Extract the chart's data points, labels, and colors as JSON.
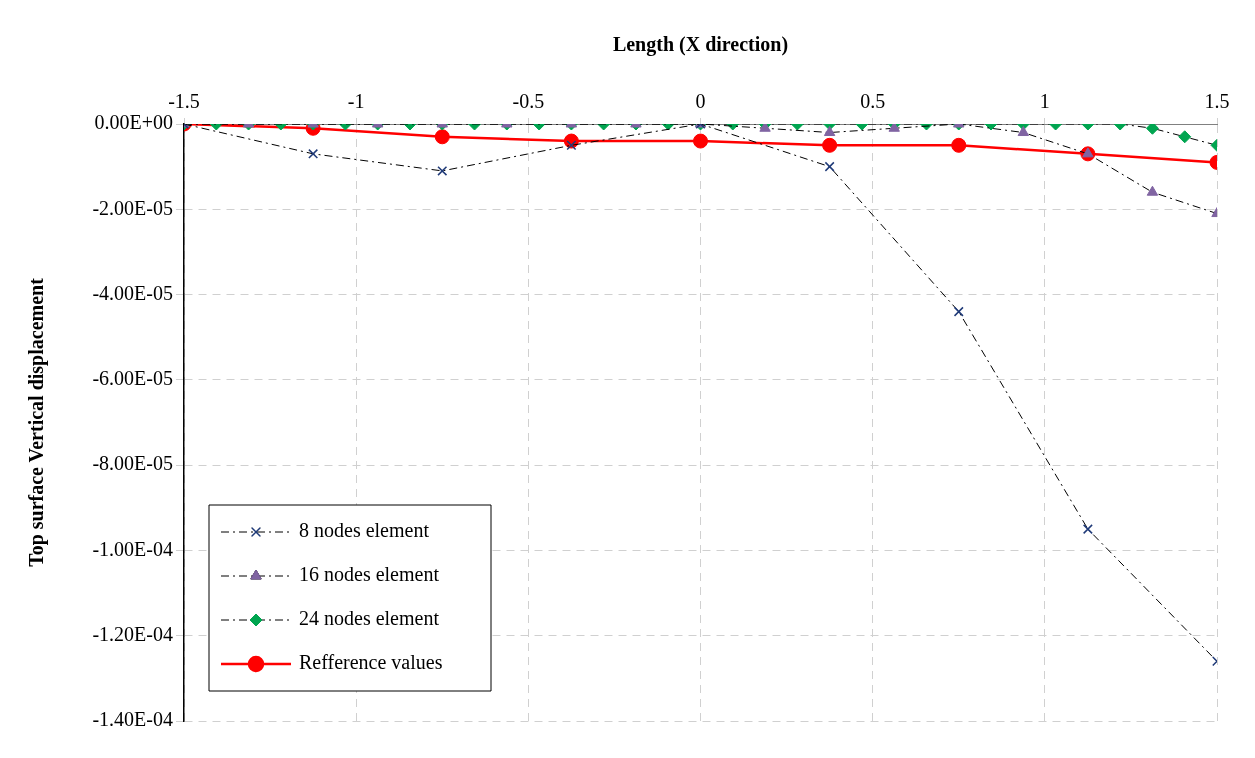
{
  "chart_data": {
    "type": "line",
    "xlabel": "Length (X direction)",
    "ylabel": "Top surface Vertical displacement",
    "xlim": [
      -1.5,
      1.5
    ],
    "xticks": [
      -1.5,
      -1,
      -0.5,
      0,
      0.5,
      1,
      1.5
    ],
    "ylim": [
      -0.00014,
      0
    ],
    "yticks": [
      {
        "value": 0,
        "label": "0.00E+00"
      },
      {
        "value": -2e-05,
        "label": "-2.00E-05"
      },
      {
        "value": -4e-05,
        "label": "-4.00E-05"
      },
      {
        "value": -6e-05,
        "label": "-6.00E-05"
      },
      {
        "value": -8e-05,
        "label": "-8.00E-05"
      },
      {
        "value": -0.0001,
        "label": "-1.00E-04"
      },
      {
        "value": -0.00012,
        "label": "-1.20E-04"
      },
      {
        "value": -0.00014,
        "label": "-1.40E-04"
      }
    ],
    "grid": true,
    "legend": "bottom left",
    "series": [
      {
        "name": "8 nodes element",
        "color": "#1f3a78",
        "marker": "cross",
        "line_style": "dashed",
        "x": [
          -1.5,
          -1.125,
          -0.75,
          -0.375,
          0,
          0.375,
          0.75,
          1.125,
          1.5
        ],
        "values": [
          0,
          -7e-06,
          -1.1e-05,
          -5e-06,
          0,
          -1e-05,
          -4.4e-05,
          -9.5e-05,
          -0.000126
        ]
      },
      {
        "name": "16 nodes element",
        "color": "#8064a2",
        "marker": "triangle",
        "line_style": "dashed",
        "x": [
          -1.5,
          -1.3125,
          -1.125,
          -0.9375,
          -0.75,
          -0.5625,
          -0.375,
          -0.1875,
          0,
          0.1875,
          0.375,
          0.5625,
          0.75,
          0.9375,
          1.125,
          1.3125,
          1.5
        ],
        "values": [
          0,
          0,
          0,
          0,
          0,
          0,
          0,
          0,
          0,
          -1e-06,
          -2e-06,
          -1e-06,
          0,
          -2e-06,
          -7e-06,
          -1.6e-05,
          -2.1e-05
        ]
      },
      {
        "name": "24 nodes element",
        "color": "#00a550",
        "marker": "diamond",
        "line_style": "dashed",
        "x": [
          -1.5,
          -1.40625,
          -1.3125,
          -1.21875,
          -1.125,
          -1.03125,
          -0.9375,
          -0.84375,
          -0.75,
          -0.65625,
          -0.5625,
          -0.46875,
          -0.375,
          -0.28125,
          -0.1875,
          -0.09375,
          0,
          0.09375,
          0.1875,
          0.28125,
          0.375,
          0.46875,
          0.5625,
          0.65625,
          0.75,
          0.84375,
          0.9375,
          1.03125,
          1.125,
          1.21875,
          1.3125,
          1.40625,
          1.5
        ],
        "values": [
          0,
          0,
          0,
          0,
          0,
          0,
          0,
          0,
          0,
          0,
          0,
          0,
          0,
          0,
          0,
          0,
          0,
          0,
          0,
          0,
          0,
          0,
          0,
          0,
          0,
          0,
          0,
          0,
          0,
          0,
          -1e-06,
          -3e-06,
          -5e-06
        ]
      },
      {
        "name": "Refference values",
        "color": "#ff0000",
        "marker": "circle",
        "line_style": "solid",
        "x": [
          -1.5,
          -1.125,
          -0.75,
          -0.375,
          0,
          0.375,
          0.75,
          1.125,
          1.5
        ],
        "values": [
          0,
          -1e-06,
          -3e-06,
          -4e-06,
          -4e-06,
          -5e-06,
          -5e-06,
          -7e-06,
          -9e-06
        ]
      }
    ]
  }
}
